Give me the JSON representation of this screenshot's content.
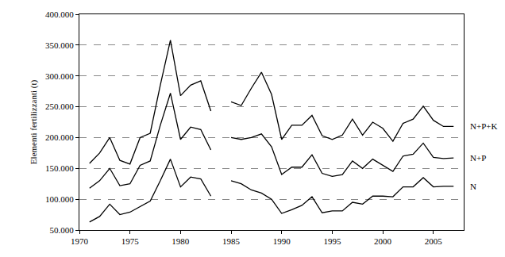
{
  "chart_data": {
    "type": "line",
    "y_label": "Elementi fertilizzanti (t)",
    "x": [
      1971,
      1972,
      1973,
      1974,
      1975,
      1976,
      1977,
      1978,
      1979,
      1980,
      1981,
      1982,
      1983,
      1984,
      1985,
      1986,
      1987,
      1988,
      1989,
      1990,
      1991,
      1992,
      1993,
      1994,
      1995,
      1996,
      1997,
      1998,
      1999,
      2000,
      2001,
      2002,
      2003,
      2004,
      2005,
      2006,
      2007
    ],
    "series": [
      {
        "name": "N+P+K",
        "color": "#000000",
        "values": [
          158000,
          175000,
          200000,
          163000,
          157000,
          200000,
          207000,
          285000,
          358000,
          268000,
          285000,
          292000,
          243000,
          null,
          258000,
          252000,
          280000,
          306000,
          270000,
          197000,
          220000,
          220000,
          236000,
          203000,
          197000,
          204000,
          230000,
          204000,
          225000,
          215000,
          194000,
          223000,
          230000,
          251000,
          228000,
          218000,
          218000
        ]
      },
      {
        "name": "N+P",
        "color": "#000000",
        "values": [
          118000,
          130000,
          150000,
          122000,
          125000,
          155000,
          162000,
          220000,
          272000,
          197000,
          217000,
          213000,
          180000,
          null,
          200000,
          197000,
          200000,
          206000,
          185000,
          140000,
          152000,
          152000,
          172000,
          142000,
          137000,
          140000,
          162000,
          150000,
          165000,
          155000,
          145000,
          170000,
          173000,
          191000,
          168000,
          166000,
          167000
        ]
      },
      {
        "name": "N",
        "color": "#000000",
        "values": [
          63000,
          72000,
          92000,
          75000,
          79000,
          88000,
          97000,
          130000,
          165000,
          120000,
          136000,
          133000,
          105000,
          null,
          130000,
          125000,
          115000,
          110000,
          100000,
          77000,
          83000,
          90000,
          104000,
          78000,
          81000,
          81000,
          95000,
          92000,
          105000,
          105000,
          104000,
          120000,
          120000,
          135000,
          120000,
          121000,
          121000
        ]
      }
    ],
    "xlim": [
      1970,
      2008
    ],
    "xticks": [
      1970,
      1975,
      1980,
      1985,
      1990,
      1995,
      2000,
      2005
    ],
    "ylim": [
      50000,
      400000
    ],
    "yticks": [
      {
        "value": 50000,
        "label": "50.000"
      },
      {
        "value": 100000,
        "label": "100.000"
      },
      {
        "value": 150000,
        "label": "150.000"
      },
      {
        "value": 200000,
        "label": "200.000"
      },
      {
        "value": 250000,
        "label": "250.000"
      },
      {
        "value": 300000,
        "label": "300.000"
      },
      {
        "value": 350000,
        "label": "350.000"
      },
      {
        "value": 400000,
        "label": "400.000"
      }
    ],
    "grid": true,
    "legend": "right"
  }
}
